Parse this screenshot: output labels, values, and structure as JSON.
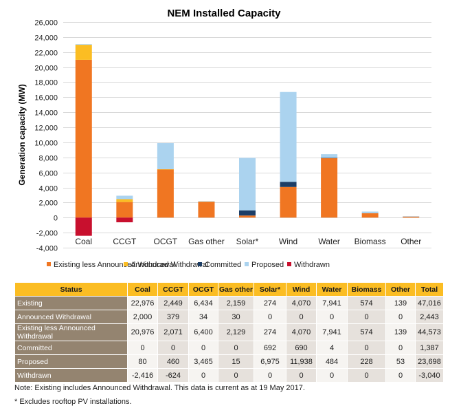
{
  "chart_data": {
    "type": "bar",
    "stacked": true,
    "title": "NEM Installed Capacity",
    "xlabel": "",
    "ylabel": "Generation capacity (MW)",
    "ylim": [
      -4000,
      26000
    ],
    "yticks": [
      -4000,
      -2000,
      0,
      2000,
      4000,
      6000,
      8000,
      10000,
      12000,
      14000,
      16000,
      18000,
      20000,
      22000,
      24000,
      26000
    ],
    "ytick_labels": [
      "-4,000",
      "-2,000",
      "0",
      "2,000",
      "4,000",
      "6,000",
      "8,000",
      "10,000",
      "12,000",
      "14,000",
      "16,000",
      "18,000",
      "20,000",
      "22,000",
      "24,000",
      "26,000"
    ],
    "grid": true,
    "legend_position": "bottom",
    "categories": [
      "Coal",
      "CCGT",
      "OCGT",
      "Gas other",
      "Solar*",
      "Wind",
      "Water",
      "Biomass",
      "Other"
    ],
    "series": [
      {
        "name": "Existing less Announced Withdrawal",
        "color": "#f07622",
        "values": [
          20976,
          2071,
          6400,
          2129,
          274,
          4070,
          7941,
          574,
          139
        ]
      },
      {
        "name": "Announced Withdrawal",
        "color": "#fbbd23",
        "values": [
          2000,
          379,
          34,
          30,
          0,
          0,
          0,
          0,
          0
        ]
      },
      {
        "name": "Committed",
        "color": "#1d3e66",
        "values": [
          0,
          0,
          0,
          0,
          692,
          690,
          4,
          0,
          0
        ]
      },
      {
        "name": "Proposed",
        "color": "#abd3ef",
        "values": [
          80,
          460,
          3465,
          15,
          6975,
          11938,
          484,
          228,
          53
        ]
      },
      {
        "name": "Withdrawn",
        "color": "#c8102e",
        "values": [
          -2416,
          -624,
          0,
          0,
          0,
          0,
          0,
          0,
          0
        ]
      }
    ]
  },
  "table": {
    "headers": [
      "Status",
      "Coal",
      "CCGT",
      "OCGT",
      "Gas other",
      "Solar*",
      "Wind",
      "Water",
      "Biomass",
      "Other",
      "Total"
    ],
    "rows": [
      {
        "status": "Existing",
        "values": [
          "22,976",
          "2,449",
          "6,434",
          "2,159",
          "274",
          "4,070",
          "7,941",
          "574",
          "139",
          "47,016"
        ]
      },
      {
        "status": "Announced Withdrawal",
        "values": [
          "2,000",
          "379",
          "34",
          "30",
          "0",
          "0",
          "0",
          "0",
          "0",
          "2,443"
        ]
      },
      {
        "status": "Existing less Announced Withdrawal",
        "values": [
          "20,976",
          "2,071",
          "6,400",
          "2,129",
          "274",
          "4,070",
          "7,941",
          "574",
          "139",
          "44,573"
        ]
      },
      {
        "status": "Committed",
        "values": [
          "0",
          "0",
          "0",
          "0",
          "692",
          "690",
          "4",
          "0",
          "0",
          "1,387"
        ]
      },
      {
        "status": "Proposed",
        "values": [
          "80",
          "460",
          "3,465",
          "15",
          "6,975",
          "11,938",
          "484",
          "228",
          "53",
          "23,698"
        ]
      },
      {
        "status": "Withdrawn",
        "values": [
          "-2,416",
          "-624",
          "0",
          "0",
          "0",
          "0",
          "0",
          "0",
          "0",
          "-3,040"
        ]
      }
    ]
  },
  "notes": {
    "note1": "Note: Existing includes Announced Withdrawal. This data is current as at 19 May 2017.",
    "note2": "* Excludes rooftop PV installations."
  }
}
